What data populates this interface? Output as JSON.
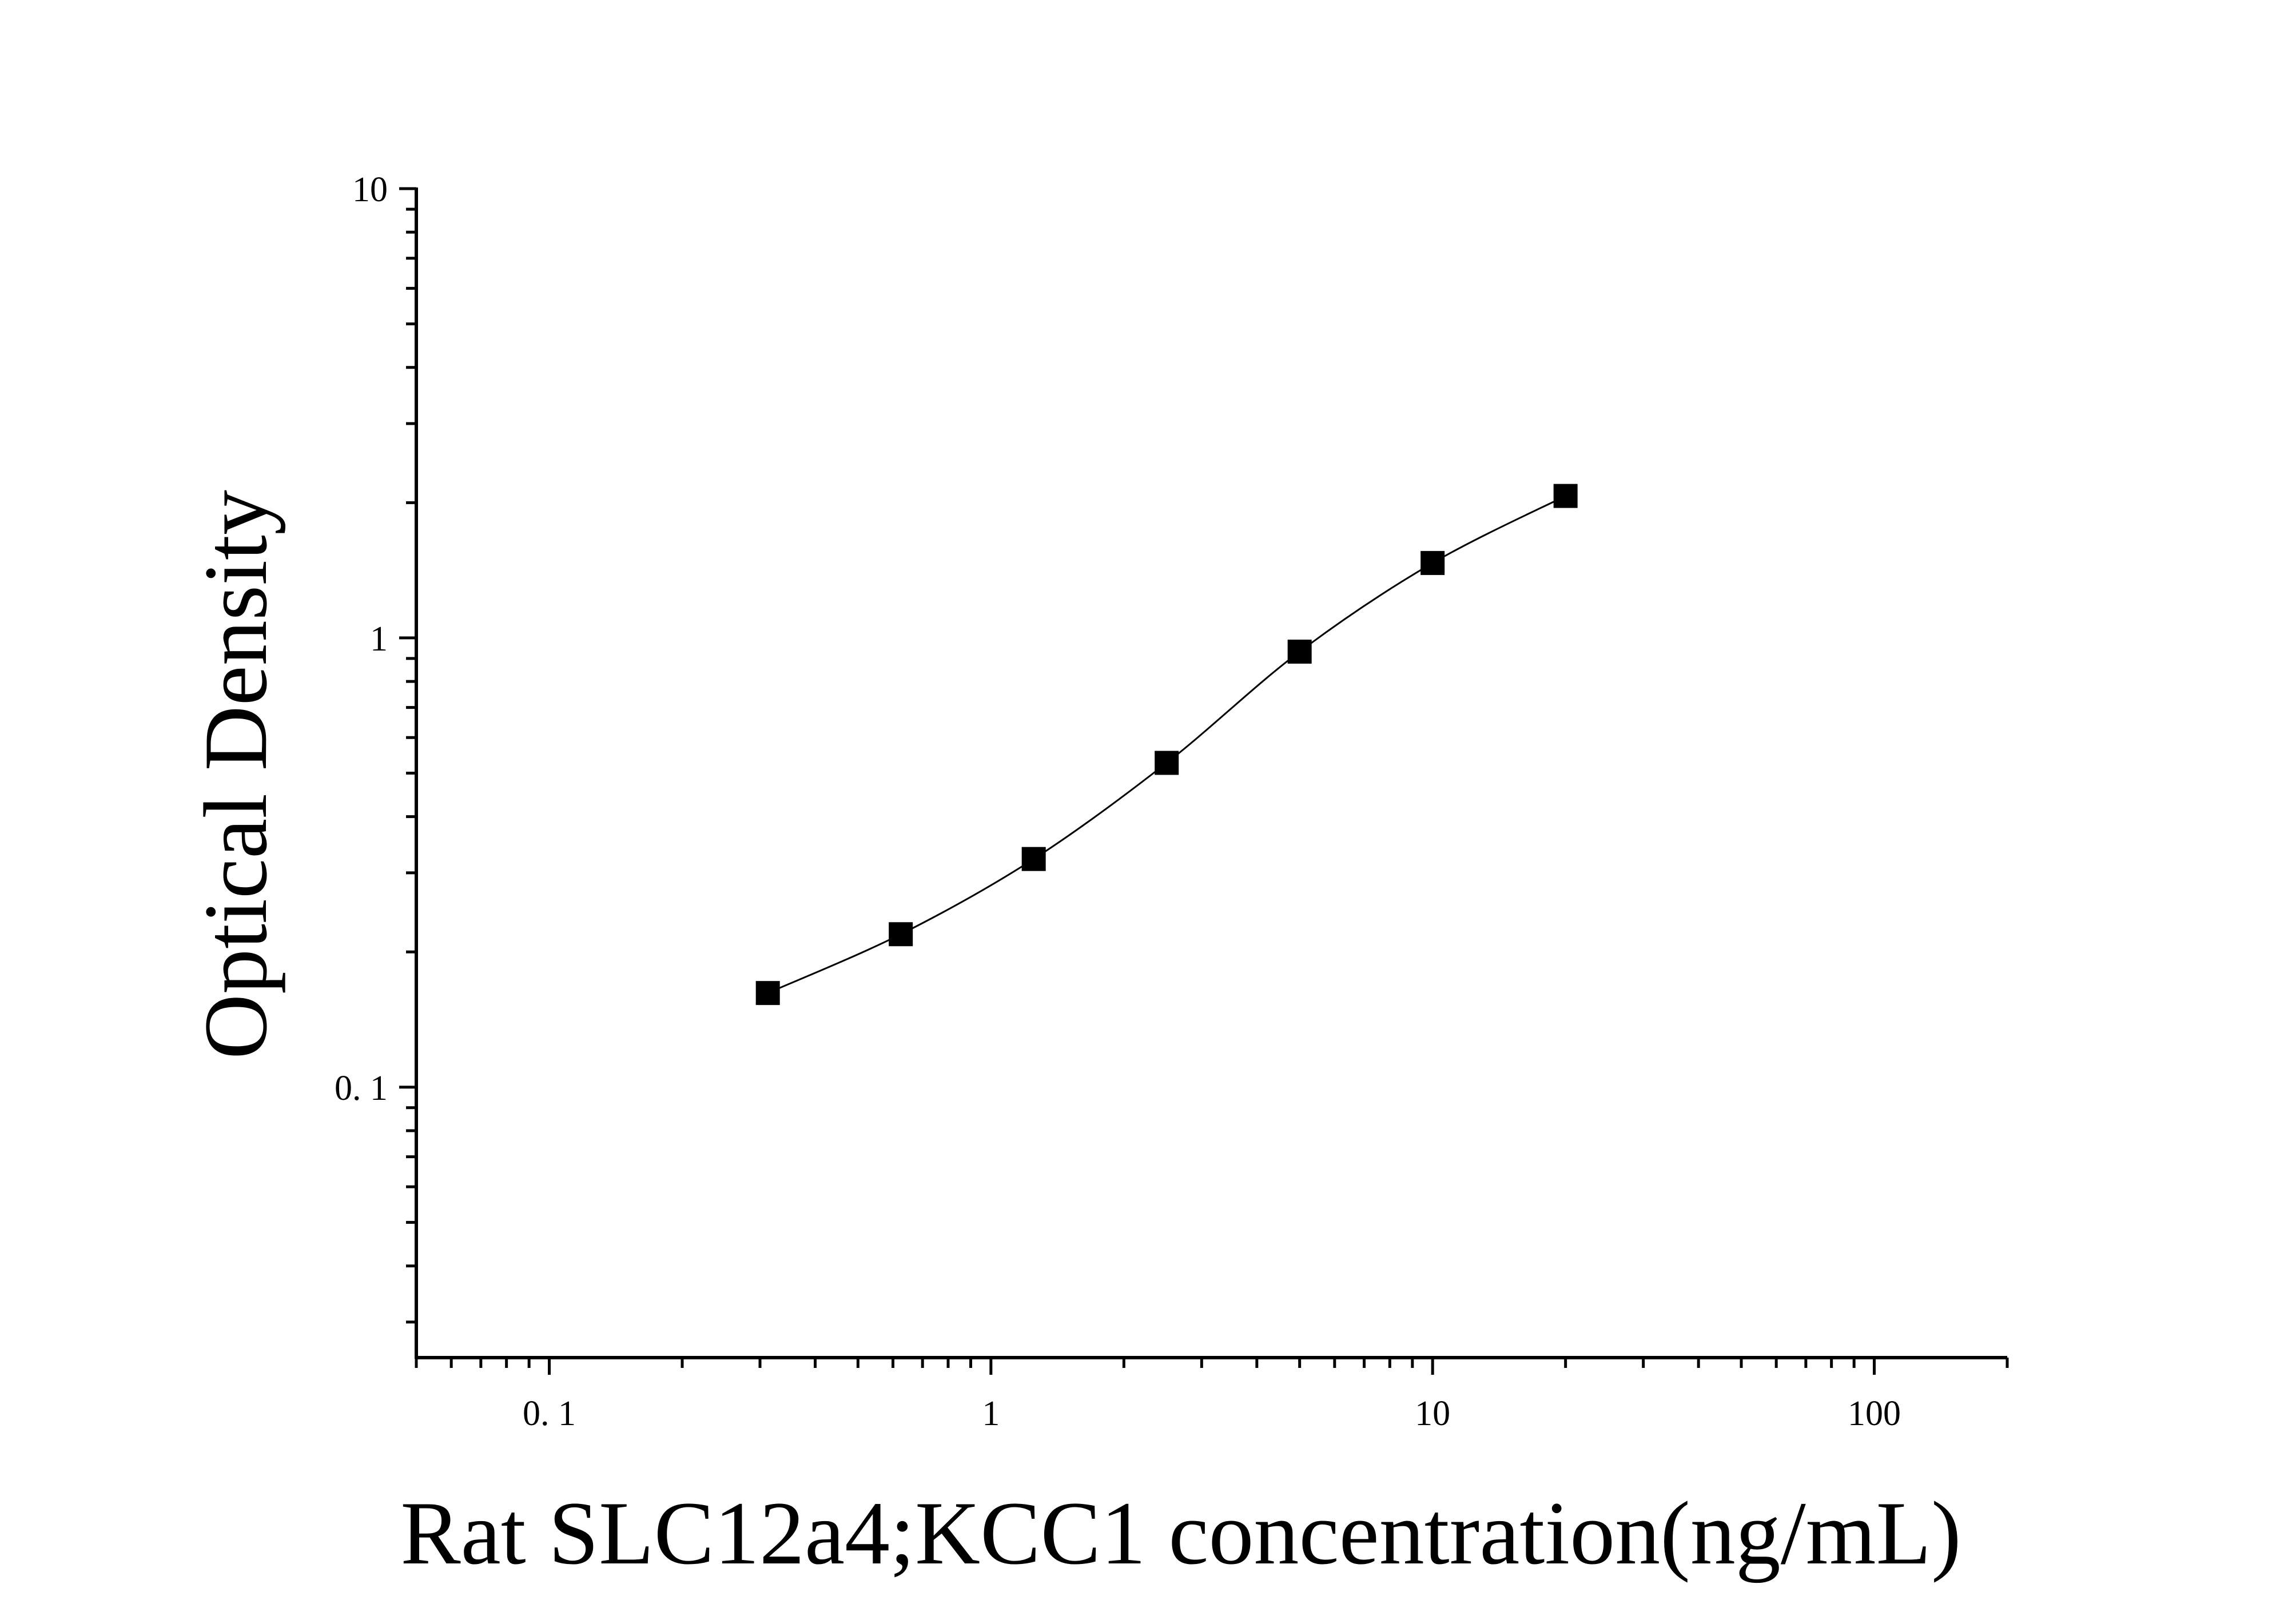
{
  "chart_data": {
    "type": "scatter",
    "xlabel": "Rat SLC12a4;KCC1 concentration(ng/mL)",
    "ylabel": "Optical Density",
    "x_scale": "log",
    "y_scale": "log",
    "xlim": [
      0.05,
      200
    ],
    "ylim": [
      0.025,
      10
    ],
    "x_ticks": [
      {
        "value": 0.1,
        "label": "0. 1"
      },
      {
        "value": 1,
        "label": "1"
      },
      {
        "value": 10,
        "label": "10"
      },
      {
        "value": 100,
        "label": "100"
      }
    ],
    "y_ticks": [
      {
        "value": 0.1,
        "label": "0. 1"
      },
      {
        "value": 1,
        "label": "1"
      },
      {
        "value": 10,
        "label": "10"
      }
    ],
    "grid": false,
    "series": [
      {
        "marker": "square",
        "color": "#000000",
        "x": [
          0.3125,
          0.625,
          1.25,
          2.5,
          5,
          10,
          20
        ],
        "y": [
          0.162,
          0.219,
          0.322,
          0.527,
          0.932,
          1.468,
          2.07
        ],
        "fit": "4-parameter logistic curve through points"
      }
    ]
  }
}
